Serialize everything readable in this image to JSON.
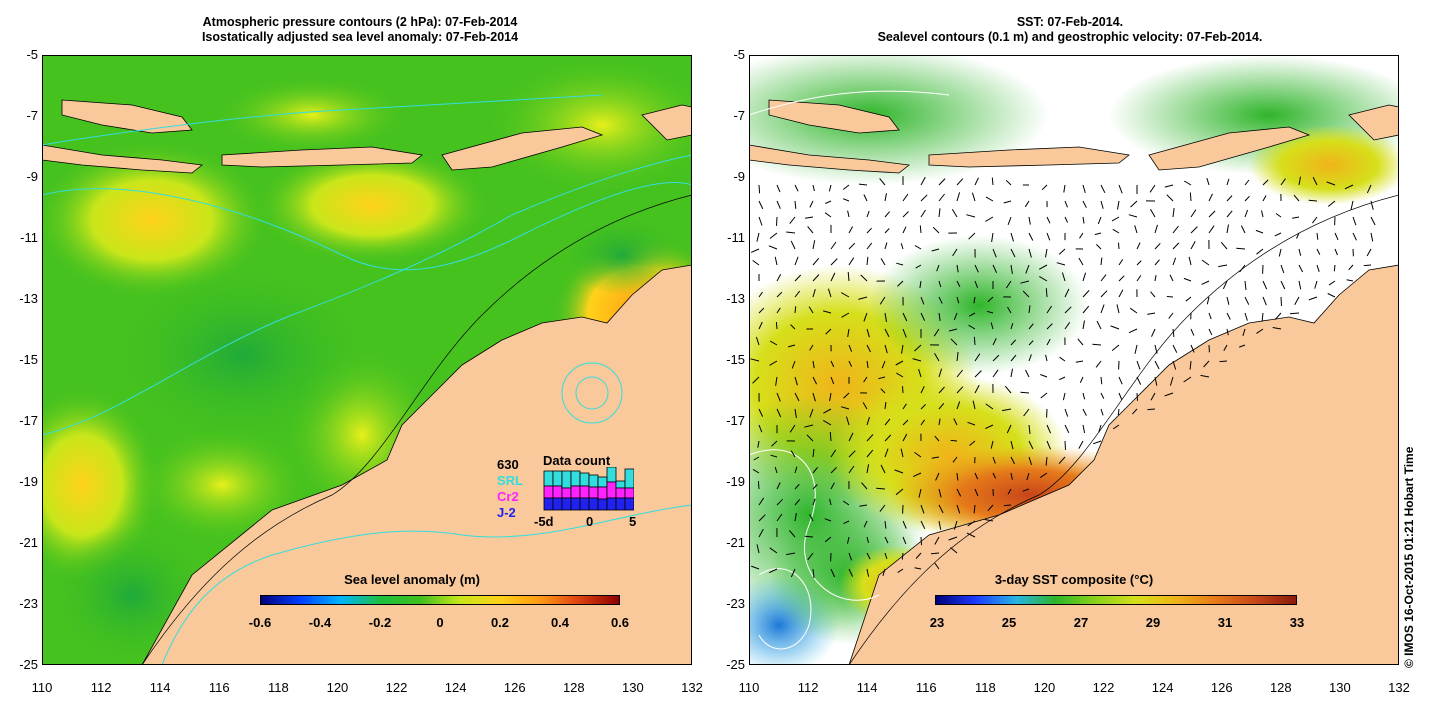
{
  "left_panel": {
    "title_line1": "Atmospheric pressure contours (2 hPa): 07-Feb-2014",
    "title_line2": "Isostatically adjusted sea level anomaly: 07-Feb-2014",
    "colorbar_title": "Sea level anomaly (m)",
    "colorbar_ticks": [
      "-0.6",
      "-0.4",
      "-0.2",
      "0",
      "0.2",
      "0.4",
      "0.6"
    ],
    "data_count": {
      "title": "Data count",
      "total": "630",
      "satellites": [
        {
          "name": "SRL",
          "color": "#33dddd"
        },
        {
          "name": "Cr2",
          "color": "#ff22ff"
        },
        {
          "name": "J-2",
          "color": "#2222ee"
        }
      ],
      "x_ticks": [
        "-5d",
        "0",
        "5"
      ]
    }
  },
  "right_panel": {
    "title_line1": "SST: 07-Feb-2014.",
    "title_line2": "Sealevel contours (0.1 m) and geostrophic velocity: 07-Feb-2014.",
    "colorbar_title": "3-day SST composite (°C)",
    "colorbar_ticks": [
      "23",
      "25",
      "27",
      "29",
      "31",
      "33"
    ]
  },
  "y_ticks": [
    "-5",
    "-7",
    "-9",
    "-11",
    "-13",
    "-15",
    "-17",
    "-19",
    "-21",
    "-23",
    "-25"
  ],
  "x_ticks": [
    "110",
    "112",
    "114",
    "116",
    "118",
    "120",
    "122",
    "124",
    "126",
    "128",
    "130",
    "132"
  ],
  "copyright": "© IMOS 16-Oct-2015 01:21 Hobart Time",
  "colors": {
    "land": "#f9c99b",
    "ocean_left": "#3fbf1f",
    "sst_warm": "#e67a1a",
    "sst_hot": "#b8300f",
    "coast": "#000000",
    "contour_cyan": "#33dddd"
  }
}
